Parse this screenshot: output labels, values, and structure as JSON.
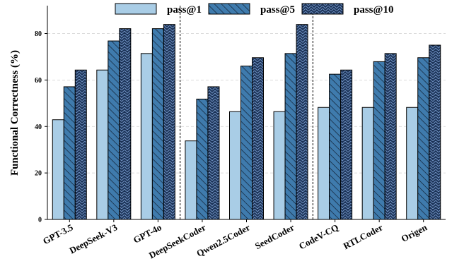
{
  "chart_data": {
    "type": "bar",
    "title": "",
    "xlabel": "",
    "ylabel": "Functional Correctness (%)",
    "ylim": [
      0,
      92
    ],
    "yticks": [
      0,
      20,
      40,
      60,
      80
    ],
    "grid": "horizontal dashed",
    "legend_position": "top",
    "categories": [
      "GPT-3.5",
      "DeepSeek-V3",
      "GPT-4o",
      "DeepSeekCoder",
      "Qwen2.5Coder",
      "SeedCoder",
      "CodeV-CQ",
      "RTLCoder",
      "Origen"
    ],
    "series": [
      {
        "name": "pass@1",
        "values": [
          42.9,
          64.3,
          71.4,
          33.8,
          46.4,
          46.4,
          48.2,
          48.2,
          48.2
        ],
        "color": "#a9cde6",
        "hatch": "none"
      },
      {
        "name": "pass@5",
        "values": [
          57.1,
          76.8,
          82.1,
          51.8,
          66.0,
          71.4,
          62.5,
          67.9,
          69.6
        ],
        "color": "#3f7bad",
        "hatch": "diagonal"
      },
      {
        "name": "pass@10",
        "values": [
          64.3,
          82.1,
          83.9,
          57.1,
          69.6,
          83.9,
          64.3,
          71.4,
          75.0
        ],
        "color": "#1c3357",
        "hatch": "chevron"
      }
    ],
    "group_separators_after": [
      "GPT-4o",
      "SeedCoder"
    ]
  }
}
